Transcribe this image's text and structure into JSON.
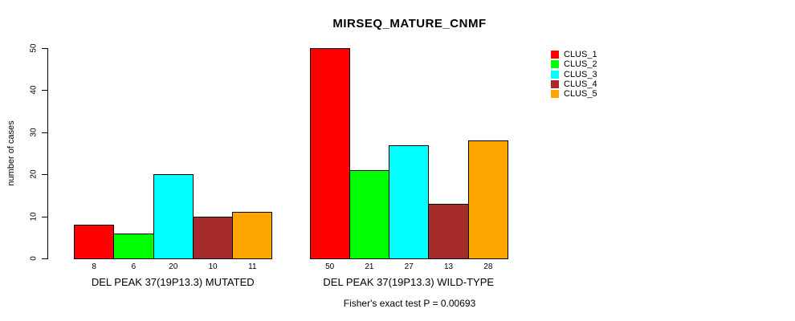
{
  "chart_data": {
    "type": "bar",
    "title": "MIRSEQ_MATURE_CNMF",
    "ylabel": "number of cases",
    "xlabel": "",
    "ylim": [
      0,
      50
    ],
    "yticks": [
      0,
      10,
      20,
      30,
      40,
      50
    ],
    "grid": false,
    "legend_position": "top-right",
    "series": [
      {
        "name": "CLUS_1",
        "color": "#FF0000"
      },
      {
        "name": "CLUS_2",
        "color": "#00FF00"
      },
      {
        "name": "CLUS_3",
        "color": "#00FFFF"
      },
      {
        "name": "CLUS_4",
        "color": "#A52A2A"
      },
      {
        "name": "CLUS_5",
        "color": "#FFA500"
      }
    ],
    "groups": [
      {
        "label": "DEL PEAK 37(19P13.3) MUTATED",
        "values": [
          8,
          6,
          20,
          10,
          11
        ]
      },
      {
        "label": "DEL PEAK 37(19P13.3) WILD-TYPE",
        "values": [
          50,
          21,
          27,
          13,
          28
        ]
      }
    ],
    "footer": "Fisher's exact test P = 0.00693"
  }
}
